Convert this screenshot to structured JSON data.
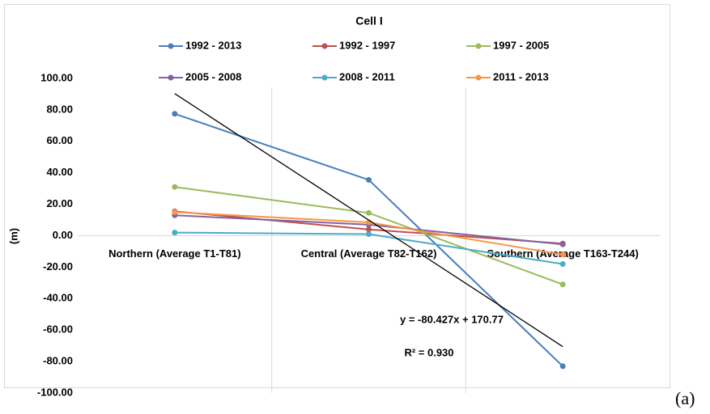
{
  "chart_data": {
    "type": "line",
    "title": "Cell I",
    "categories": [
      "Northern (Average T1-T81)",
      "Central (Average T82-T162)",
      "Southern (Average T163-T244)"
    ],
    "series": [
      {
        "name": "1992 - 2013",
        "color": "#4a7ebb",
        "values": [
          77.5,
          35.5,
          -83
        ]
      },
      {
        "name": "1992 - 1997",
        "color": "#c0504d",
        "values": [
          15.5,
          4,
          -5
        ]
      },
      {
        "name": "1997 - 2005",
        "color": "#9bbb59",
        "values": [
          31,
          14.5,
          -31
        ]
      },
      {
        "name": "2005 - 2008",
        "color": "#8064a2",
        "values": [
          13,
          7,
          -5.5
        ]
      },
      {
        "name": "2008 - 2011",
        "color": "#4bacc6",
        "values": [
          2,
          1,
          -18
        ]
      },
      {
        "name": "2011 - 2013",
        "color": "#f79646",
        "values": [
          15,
          8.5,
          -12
        ]
      }
    ],
    "y_label": "(m)",
    "ylim": [
      -100,
      100
    ],
    "yticks": [
      {
        "value": 100,
        "label": "100.00"
      },
      {
        "value": 80,
        "label": "80.00"
      },
      {
        "value": 60,
        "label": "60.00"
      },
      {
        "value": 40,
        "label": "40.00"
      },
      {
        "value": 20,
        "label": "20.00"
      },
      {
        "value": 0,
        "label": "0.00"
      },
      {
        "value": -20,
        "label": "-20.00"
      },
      {
        "value": -40,
        "label": "-40.00"
      },
      {
        "value": -60,
        "label": "-60.00"
      },
      {
        "value": -80,
        "label": "-80.00"
      },
      {
        "value": -100,
        "label": "-100.00"
      }
    ],
    "trendline": {
      "color": "#000000",
      "slope": -80.427,
      "intercept": 170.77,
      "equation": "y = -80.427x + 170.77",
      "r_squared": "R² = 0.930"
    },
    "panel_label": "(a)"
  }
}
